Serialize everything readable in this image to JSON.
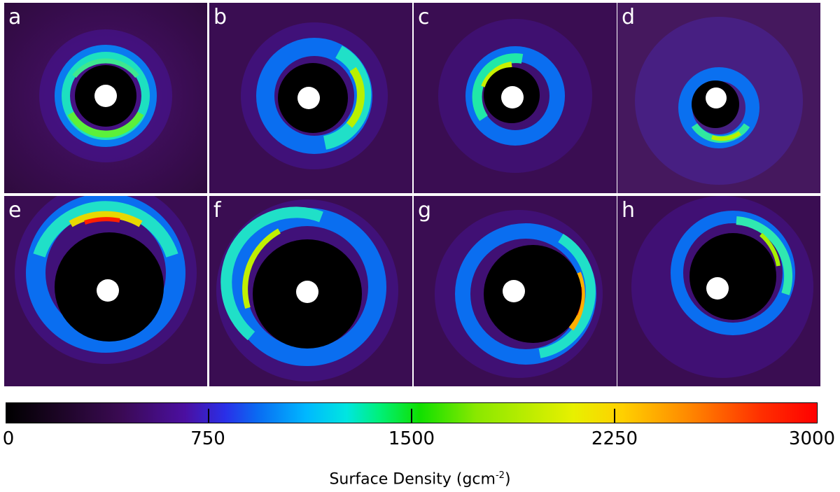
{
  "panels": [
    {
      "letter": "a",
      "ring": "symmetric"
    },
    {
      "letter": "b",
      "ring": "crescent-right"
    },
    {
      "letter": "c",
      "ring": "crescent-upper-left"
    },
    {
      "letter": "d",
      "ring": "small-crescent-lower"
    },
    {
      "letter": "e",
      "ring": "large-crescent-top"
    },
    {
      "letter": "f",
      "ring": "large-crescent-left"
    },
    {
      "letter": "g",
      "ring": "large-crescent-right"
    },
    {
      "letter": "h",
      "ring": "large-crescent-upper-right"
    }
  ],
  "colorbar": {
    "ticks": [
      "0",
      "750",
      "1500",
      "2250",
      "3000"
    ],
    "title": "Surface Density (gcm",
    "title_exponent": "-2",
    "title_suffix": ")",
    "colormap": [
      "#000000",
      "#3a0a52",
      "#4b0fa0",
      "#0a6bf2",
      "#00e6e0",
      "#10e000",
      "#e8f000",
      "#ff8a00",
      "#ff0000"
    ]
  }
}
